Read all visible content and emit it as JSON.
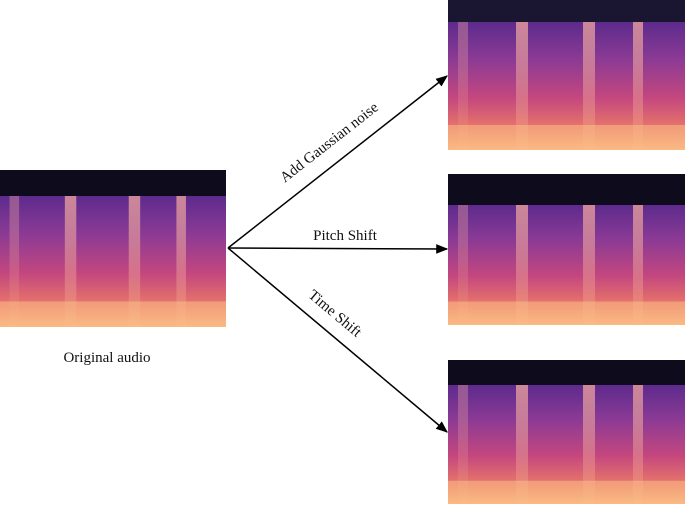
{
  "original": {
    "caption": "Original audio"
  },
  "augmentations": [
    {
      "label": "Add Gaussian noise"
    },
    {
      "label": "Pitch Shift"
    },
    {
      "label": "Time Shift"
    }
  ]
}
